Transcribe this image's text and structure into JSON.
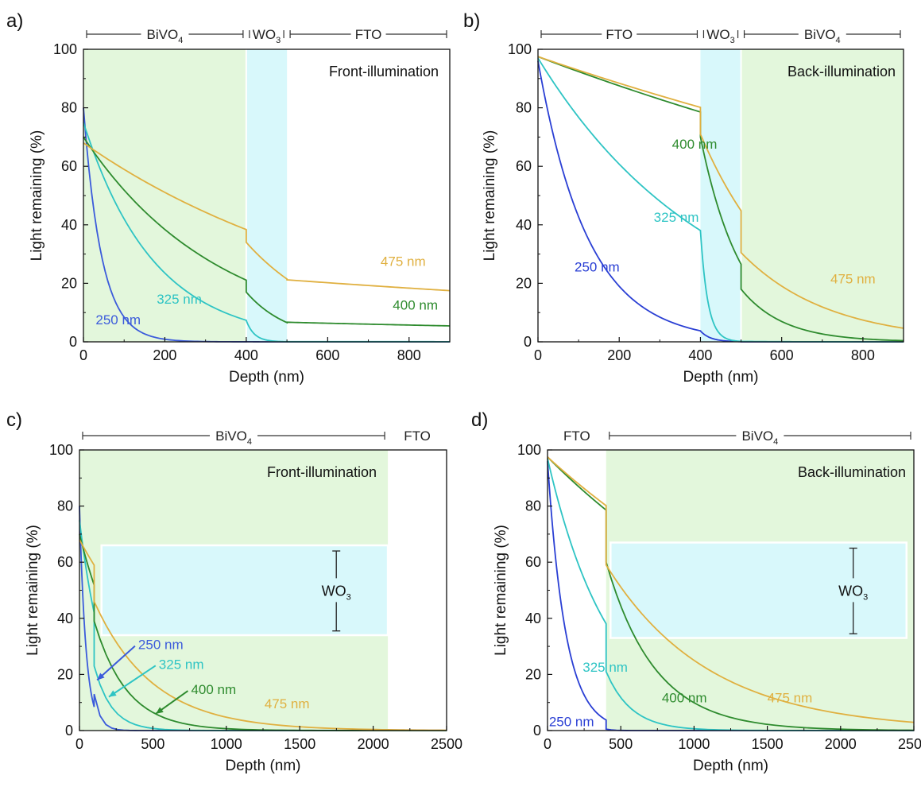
{
  "chart_data": [
    {
      "panel": "a)",
      "type": "line",
      "xlabel": "Depth (nm)",
      "ylabel": "Light remaining (%)",
      "xlim": [
        0,
        900
      ],
      "ylim": [
        0,
        100
      ],
      "xticks": [
        0,
        200,
        400,
        600,
        800
      ],
      "yticks": [
        0,
        20,
        40,
        60,
        80,
        100
      ],
      "illumination": "Front-illumination",
      "layers": [
        {
          "name": "BiVO",
          "sub": "4",
          "from": 0,
          "to": 400,
          "color": "#e3f7dc"
        },
        {
          "name": "WO",
          "sub": "3",
          "from": 400,
          "to": 500,
          "color": "#d8f8fb"
        },
        {
          "name": "FTO",
          "sub": "",
          "from": 500,
          "to": 900,
          "color": null
        }
      ],
      "series": [
        {
          "name": "250 nm",
          "color": "#3b5bdb",
          "label_at": [
            30,
            6
          ],
          "segments": [
            {
              "x0": 0,
              "x1": 400,
              "y0": 80,
              "k": 0.0225
            },
            {
              "x0": 400,
              "x1": 500,
              "y0": 0.05,
              "k": 0.05
            },
            {
              "x0": 500,
              "x1": 900,
              "y0": 0,
              "k": 0
            }
          ]
        },
        {
          "name": "325 nm",
          "color": "#2ec4c4",
          "label_at": [
            180,
            13
          ],
          "segments": [
            {
              "x0": 0,
              "x1": 400,
              "y0": 75,
              "k": 0.0058
            },
            {
              "x0": 400,
              "x1": 500,
              "y0": 7.3,
              "k": 0.05
            },
            {
              "x0": 500,
              "x1": 900,
              "y0": 0.05,
              "k": 0.0003
            }
          ]
        },
        {
          "name": "400 nm",
          "color": "#2e8b2e",
          "label_at": [
            760,
            11
          ],
          "segments": [
            {
              "x0": 0,
              "x1": 400,
              "y0": 70,
              "k": 0.003
            },
            {
              "x0": 400,
              "x1": 500,
              "y0": 17,
              "k": 0.0095
            },
            {
              "x0": 500,
              "x1": 900,
              "y0": 6.7,
              "k": 0.00052
            }
          ]
        },
        {
          "name": "475 nm",
          "color": "#e0b040",
          "label_at": [
            730,
            26
          ],
          "segments": [
            {
              "x0": 0,
              "x1": 400,
              "y0": 68,
              "k": 0.00143
            },
            {
              "x0": 400,
              "x1": 500,
              "y0": 34,
              "k": 0.0046
            },
            {
              "x0": 500,
              "x1": 900,
              "y0": 21.2,
              "k": 0.00048
            }
          ]
        }
      ]
    },
    {
      "panel": "b)",
      "type": "line",
      "xlabel": "Depth (nm)",
      "ylabel": "Light remaining (%)",
      "xlim": [
        0,
        900
      ],
      "ylim": [
        0,
        100
      ],
      "xticks": [
        0,
        200,
        400,
        600,
        800
      ],
      "yticks": [
        0,
        20,
        40,
        60,
        80,
        100
      ],
      "illumination": "Back-illumination",
      "layers": [
        {
          "name": "FTO",
          "sub": "",
          "from": 0,
          "to": 400,
          "color": null
        },
        {
          "name": "WO",
          "sub": "3",
          "from": 400,
          "to": 500,
          "color": "#d8f8fb"
        },
        {
          "name": "BiVO",
          "sub": "4",
          "from": 500,
          "to": 900,
          "color": "#e3f7dc"
        }
      ],
      "series": [
        {
          "name": "250 nm",
          "color": "#2a3fd4",
          "label_at": [
            90,
            24
          ],
          "segments": [
            {
              "x0": 0,
              "x1": 400,
              "y0": 96,
              "k": 0.0081
            },
            {
              "x0": 400,
              "x1": 500,
              "y0": 3.7,
              "k": 0.04
            },
            {
              "x0": 500,
              "x1": 900,
              "y0": 0,
              "k": 0
            }
          ]
        },
        {
          "name": "325 nm",
          "color": "#2ec4c4",
          "label_at": [
            285,
            41
          ],
          "segments": [
            {
              "x0": 0,
              "x1": 400,
              "y0": 97,
              "k": 0.00234
            },
            {
              "x0": 400,
              "x1": 500,
              "y0": 38,
              "k": 0.055
            },
            {
              "x0": 500,
              "x1": 900,
              "y0": 0.15,
              "k": 0.01
            }
          ]
        },
        {
          "name": "400 nm",
          "color": "#2e8b2e",
          "label_at": [
            330,
            66
          ],
          "segments": [
            {
              "x0": 0,
              "x1": 400,
              "y0": 97.5,
              "k": 0.00054
            },
            {
              "x0": 400,
              "x1": 500,
              "y0": 70,
              "k": 0.0097
            },
            {
              "x0": 500,
              "x1": 900,
              "y0": 18,
              "k": 0.0095
            }
          ]
        },
        {
          "name": "475 nm",
          "color": "#e0b040",
          "label_at": [
            720,
            20
          ],
          "segments": [
            {
              "x0": 0,
              "x1": 400,
              "y0": 97.5,
              "k": 0.00049
            },
            {
              "x0": 400,
              "x1": 500,
              "y0": 71,
              "k": 0.0046
            },
            {
              "x0": 500,
              "x1": 900,
              "y0": 30.5,
              "k": 0.0047
            }
          ]
        }
      ]
    },
    {
      "panel": "c)",
      "type": "line",
      "xlabel": "Depth (nm)",
      "ylabel": "Light remaining (%)",
      "xlim": [
        0,
        2500
      ],
      "ylim": [
        0,
        100
      ],
      "xticks": [
        0,
        500,
        1000,
        1500,
        2000,
        2500
      ],
      "yticks": [
        0,
        20,
        40,
        60,
        80,
        100
      ],
      "illumination": "Front-illumination",
      "layers": [
        {
          "name": "BiVO",
          "sub": "4",
          "from": 0,
          "to": 2100,
          "color": "#e3f7dc"
        },
        {
          "name": "FTO",
          "sub": "",
          "from": 2100,
          "to": 2500,
          "color": null
        }
      ],
      "inset": {
        "label": "WO",
        "sub": "3",
        "x0": 150,
        "x1": 2100,
        "y0": 34,
        "y1": 66,
        "color": "#d8f8fb"
      },
      "series": [
        {
          "name": "250 nm",
          "color": "#3b5bdb",
          "label_at": [
            400,
            29
          ],
          "arrow_to": [
            120,
            18
          ],
          "segments": [
            {
              "x0": 0,
              "x1": 100,
              "y0": 80,
              "k": 0.0225
            },
            {
              "x0": 100,
              "x1": 2500,
              "y0": 13,
              "k": 0.0225
            }
          ]
        },
        {
          "name": "325 nm",
          "color": "#2ec4c4",
          "label_at": [
            540,
            22
          ],
          "arrow_to": [
            200,
            12
          ],
          "segments": [
            {
              "x0": 0,
              "x1": 100,
              "y0": 75,
              "k": 0.0058
            },
            {
              "x0": 100,
              "x1": 2500,
              "y0": 23,
              "k": 0.0085
            }
          ]
        },
        {
          "name": "400 nm",
          "color": "#2e8b2e",
          "label_at": [
            760,
            13
          ],
          "arrow_to": [
            520,
            6
          ],
          "segments": [
            {
              "x0": 0,
              "x1": 100,
              "y0": 70,
              "k": 0.003
            },
            {
              "x0": 100,
              "x1": 2500,
              "y0": 39,
              "k": 0.0045
            }
          ]
        },
        {
          "name": "475 nm",
          "color": "#e0b040",
          "label_at": [
            1260,
            8
          ],
          "segments": [
            {
              "x0": 0,
              "x1": 100,
              "y0": 68,
              "k": 0.00143
            },
            {
              "x0": 100,
              "x1": 2500,
              "y0": 46,
              "k": 0.00252
            }
          ]
        }
      ]
    },
    {
      "panel": "d)",
      "type": "line",
      "xlabel": "Depth (nm)",
      "ylabel": "Light remaining (%)",
      "xlim": [
        0,
        2500
      ],
      "ylim": [
        0,
        100
      ],
      "xticks": [
        0,
        500,
        1000,
        1500,
        2000,
        2500
      ],
      "yticks": [
        0,
        20,
        40,
        60,
        80,
        100
      ],
      "illumination": "Back-illumination",
      "layers": [
        {
          "name": "FTO",
          "sub": "",
          "from": 0,
          "to": 400,
          "color": null
        },
        {
          "name": "BiVO",
          "sub": "4",
          "from": 400,
          "to": 2500,
          "color": "#e3f7dc"
        }
      ],
      "inset": {
        "label": "WO",
        "sub": "3",
        "x0": 430,
        "x1": 2450,
        "y0": 33,
        "y1": 67,
        "color": "#d8f8fb"
      },
      "series": [
        {
          "name": "250 nm",
          "color": "#2a3fd4",
          "label_at": [
            10,
            1.5
          ],
          "segments": [
            {
              "x0": 0,
              "x1": 400,
              "y0": 96,
              "k": 0.0081
            },
            {
              "x0": 400,
              "x1": 2500,
              "y0": 0.5,
              "k": 0.0225
            }
          ]
        },
        {
          "name": "325 nm",
          "color": "#2ec4c4",
          "label_at": [
            240,
            21
          ],
          "segments": [
            {
              "x0": 0,
              "x1": 400,
              "y0": 97,
              "k": 0.00234
            },
            {
              "x0": 400,
              "x1": 2500,
              "y0": 21,
              "k": 0.0058
            }
          ]
        },
        {
          "name": "400 nm",
          "color": "#2e8b2e",
          "label_at": [
            780,
            10
          ],
          "segments": [
            {
              "x0": 0,
              "x1": 400,
              "y0": 97.5,
              "k": 0.00054
            },
            {
              "x0": 400,
              "x1": 2500,
              "y0": 60,
              "k": 0.003
            }
          ]
        },
        {
          "name": "475 nm",
          "color": "#e0b040",
          "label_at": [
            1500,
            10
          ],
          "segments": [
            {
              "x0": 0,
              "x1": 400,
              "y0": 97.5,
              "k": 0.00049
            },
            {
              "x0": 400,
              "x1": 2500,
              "y0": 59,
              "k": 0.00143
            }
          ]
        }
      ]
    }
  ]
}
